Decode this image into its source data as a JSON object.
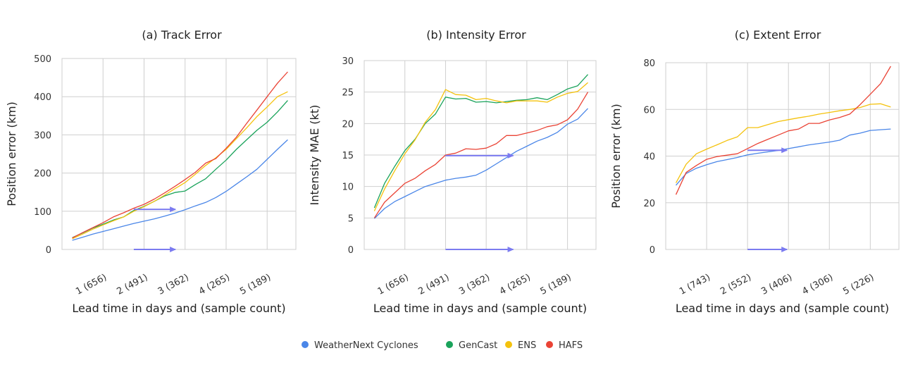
{
  "colors": {
    "WeatherNext Cyclones": "#4a86e8",
    "GenCast": "#1aa35b",
    "ENS": "#f4c20d",
    "HAFS": "#ea4335",
    "arrow": "#7b7bf0",
    "grid": "#cfcfcf"
  },
  "legend": [
    "WeatherNext Cyclones",
    "GenCast",
    "ENS",
    "HAFS"
  ],
  "chart_data": [
    {
      "type": "line",
      "title": "(a) Track Error",
      "xlabel": "Lead time in days and (sample count)",
      "ylabel": "Position error (km)",
      "ylim": [
        0,
        500
      ],
      "yticks": [
        0,
        100,
        200,
        300,
        400,
        500
      ],
      "xlim": [
        0,
        5.7
      ],
      "xticks": [
        1,
        2,
        3,
        4,
        5
      ],
      "xticklabels": [
        "1 (656)",
        "2 (491)",
        "3 (362)",
        "4 (265)",
        "5 (189)"
      ],
      "grid": true,
      "x": [
        0.25,
        0.5,
        0.75,
        1.0,
        1.25,
        1.5,
        1.75,
        2.0,
        2.25,
        2.5,
        2.75,
        3.0,
        3.25,
        3.5,
        3.75,
        4.0,
        4.25,
        4.5,
        4.75,
        5.0,
        5.25,
        5.5
      ],
      "series": [
        {
          "name": "WeatherNext Cyclones",
          "values": [
            24,
            32,
            40,
            47,
            54,
            61,
            68,
            74,
            80,
            87,
            95,
            104,
            114,
            123,
            136,
            152,
            171,
            190,
            210,
            236,
            262,
            287
          ]
        },
        {
          "name": "GenCast",
          "values": [
            31,
            43,
            56,
            66,
            77,
            85,
            102,
            113,
            126,
            140,
            149,
            153,
            170,
            185,
            210,
            234,
            262,
            287,
            312,
            333,
            360,
            390
          ]
        },
        {
          "name": "ENS",
          "values": [
            28,
            40,
            53,
            64,
            75,
            85,
            100,
            112,
            126,
            142,
            159,
            175,
            197,
            220,
            240,
            262,
            290,
            318,
            348,
            373,
            400,
            413
          ]
        },
        {
          "name": "HAFS",
          "values": [
            30,
            44,
            57,
            70,
            85,
            96,
            108,
            118,
            132,
            148,
            165,
            183,
            202,
            226,
            238,
            265,
            294,
            330,
            365,
            400,
            435,
            465
          ]
        }
      ],
      "annotations": [
        {
          "type": "arrow",
          "from": [
            1.75,
            105
          ],
          "to": [
            2.8,
            105
          ]
        },
        {
          "type": "arrow",
          "from": [
            1.75,
            0
          ],
          "to": [
            2.8,
            0
          ]
        }
      ]
    },
    {
      "type": "line",
      "title": "(b) Intensity Error",
      "xlabel": "Lead time in days and (sample count)",
      "ylabel": "Intensity MAE (kt)",
      "ylim": [
        0,
        30
      ],
      "yticks": [
        0,
        5,
        10,
        15,
        20,
        25,
        30
      ],
      "xlim": [
        0,
        5.7
      ],
      "xticks": [
        1,
        2,
        3,
        4,
        5
      ],
      "xticklabels": [
        "1 (656)",
        "2 (491)",
        "3 (362)",
        "4 (265)",
        "5 (189)"
      ],
      "grid": true,
      "x": [
        0.25,
        0.5,
        0.75,
        1.0,
        1.25,
        1.5,
        1.75,
        2.0,
        2.25,
        2.5,
        2.75,
        3.0,
        3.25,
        3.5,
        3.75,
        4.0,
        4.25,
        4.5,
        4.75,
        5.0,
        5.25,
        5.5
      ],
      "series": [
        {
          "name": "WeatherNext Cyclones",
          "values": [
            4.9,
            6.5,
            7.6,
            8.4,
            9.2,
            10.0,
            10.5,
            11.0,
            11.3,
            11.5,
            11.8,
            12.6,
            13.6,
            14.6,
            15.6,
            16.4,
            17.2,
            17.8,
            18.6,
            19.9,
            20.7,
            22.4
          ]
        },
        {
          "name": "GenCast",
          "values": [
            6.6,
            10.5,
            13.2,
            15.7,
            17.5,
            20.0,
            21.5,
            24.2,
            23.9,
            24.0,
            23.4,
            23.5,
            23.3,
            23.5,
            23.7,
            23.8,
            24.1,
            23.8,
            24.6,
            25.5,
            26.0,
            27.8
          ]
        },
        {
          "name": "ENS",
          "values": [
            6.1,
            9.6,
            12.5,
            15.2,
            17.4,
            20.2,
            22.2,
            25.4,
            24.6,
            24.5,
            23.8,
            24.0,
            23.6,
            23.3,
            23.6,
            23.6,
            23.6,
            23.4,
            24.2,
            24.8,
            25.1,
            26.5
          ]
        },
        {
          "name": "HAFS",
          "values": [
            5.0,
            7.5,
            9.0,
            10.5,
            11.3,
            12.5,
            13.5,
            15.0,
            15.3,
            16.0,
            15.9,
            16.1,
            16.8,
            18.1,
            18.1,
            18.5,
            18.9,
            19.5,
            19.8,
            20.6,
            22.3,
            25.0
          ]
        }
      ],
      "annotations": [
        {
          "type": "arrow",
          "from": [
            2.0,
            14.9
          ],
          "to": [
            3.7,
            14.9
          ]
        },
        {
          "type": "arrow",
          "from": [
            2.0,
            0
          ],
          "to": [
            3.7,
            0
          ]
        }
      ]
    },
    {
      "type": "line",
      "title": "(c) Extent Error",
      "xlabel": "Lead time in days and (sample count)",
      "ylabel": "Position error (km)",
      "ylim": [
        0,
        80
      ],
      "yticks": [
        0,
        20,
        40,
        60,
        80
      ],
      "xlim": [
        0,
        5.7
      ],
      "xticks": [
        1,
        2,
        3,
        4,
        5
      ],
      "xticklabels": [
        "1 (743)",
        "2 (552)",
        "3 (406)",
        "4 (306)",
        "5 (226)"
      ],
      "grid": true,
      "x": [
        0.25,
        0.5,
        0.75,
        1.0,
        1.25,
        1.5,
        1.75,
        2.0,
        2.25,
        2.5,
        2.75,
        3.0,
        3.25,
        3.5,
        3.75,
        4.0,
        4.25,
        4.5,
        4.75,
        5.0,
        5.25,
        5.5
      ],
      "series": [
        {
          "name": "WeatherNext Cyclones",
          "values": [
            27.5,
            32.5,
            34.8,
            36.3,
            37.6,
            38.5,
            39.4,
            40.5,
            41.2,
            41.8,
            42.4,
            43.2,
            44.0,
            44.8,
            45.4,
            46.0,
            46.8,
            49.0,
            49.8,
            51.0,
            51.3,
            51.6
          ]
        },
        {
          "name": "ENS",
          "values": [
            28.5,
            36.5,
            41.0,
            43.0,
            44.8,
            46.7,
            48.2,
            52.2,
            52.2,
            53.5,
            54.8,
            55.6,
            56.4,
            57.1,
            58.0,
            58.7,
            59.4,
            60.0,
            60.8,
            62.2,
            62.4,
            61.0
          ]
        },
        {
          "name": "HAFS",
          "values": [
            23.5,
            33.0,
            36.0,
            38.6,
            39.8,
            40.4,
            41.0,
            43.2,
            45.4,
            47.2,
            49.0,
            50.8,
            51.6,
            54.0,
            54.0,
            55.5,
            56.5,
            58.0,
            62.0,
            66.5,
            71.0,
            78.5
          ]
        }
      ],
      "annotations": [
        {
          "type": "arrow",
          "from": [
            2.0,
            42.5
          ],
          "to": [
            3.0,
            42.5
          ]
        },
        {
          "type": "arrow",
          "from": [
            2.0,
            0
          ],
          "to": [
            3.0,
            0
          ]
        }
      ]
    }
  ]
}
